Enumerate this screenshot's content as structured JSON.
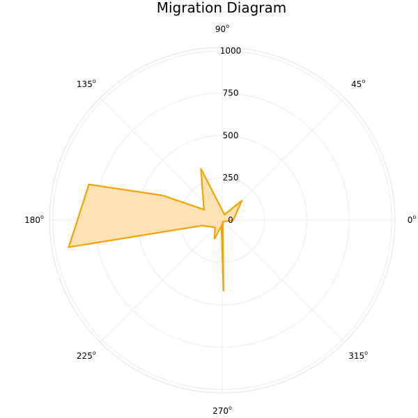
{
  "chart_data": {
    "type": "polar-area",
    "title": "Migration  Diagram",
    "angle_unit": "degrees",
    "angular_ticks": [
      {
        "angle": 0,
        "label": "0"
      },
      {
        "angle": 45,
        "label": "45"
      },
      {
        "angle": 90,
        "label": "90"
      },
      {
        "angle": 135,
        "label": "135"
      },
      {
        "angle": 180,
        "label": "180"
      },
      {
        "angle": 225,
        "label": "225"
      },
      {
        "angle": 270,
        "label": "270"
      },
      {
        "angle": 315,
        "label": "315"
      }
    ],
    "radial_ticks": [
      0,
      250,
      500,
      750,
      1000
    ],
    "rlim": [
      0,
      1020
    ],
    "grid": true,
    "legend": "none",
    "series": [
      {
        "color": "#f5a300",
        "fill": "#fde3b3",
        "points": [
          {
            "angle": 0,
            "r": 65
          },
          {
            "angle": 45,
            "r": 165
          },
          {
            "angle": 67.5,
            "r": 35
          },
          {
            "angle": 112.5,
            "r": 330
          },
          {
            "angle": 150,
            "r": 125
          },
          {
            "angle": 157.5,
            "r": 380
          },
          {
            "angle": 165,
            "r": 815
          },
          {
            "angle": 190,
            "r": 920
          },
          {
            "angle": 195,
            "r": 125
          },
          {
            "angle": 225,
            "r": 60
          },
          {
            "angle": 247.5,
            "r": 120
          },
          {
            "angle": 262,
            "r": 35
          },
          {
            "angle": 271,
            "r": 420
          },
          {
            "angle": 290,
            "r": 10
          }
        ]
      }
    ]
  }
}
